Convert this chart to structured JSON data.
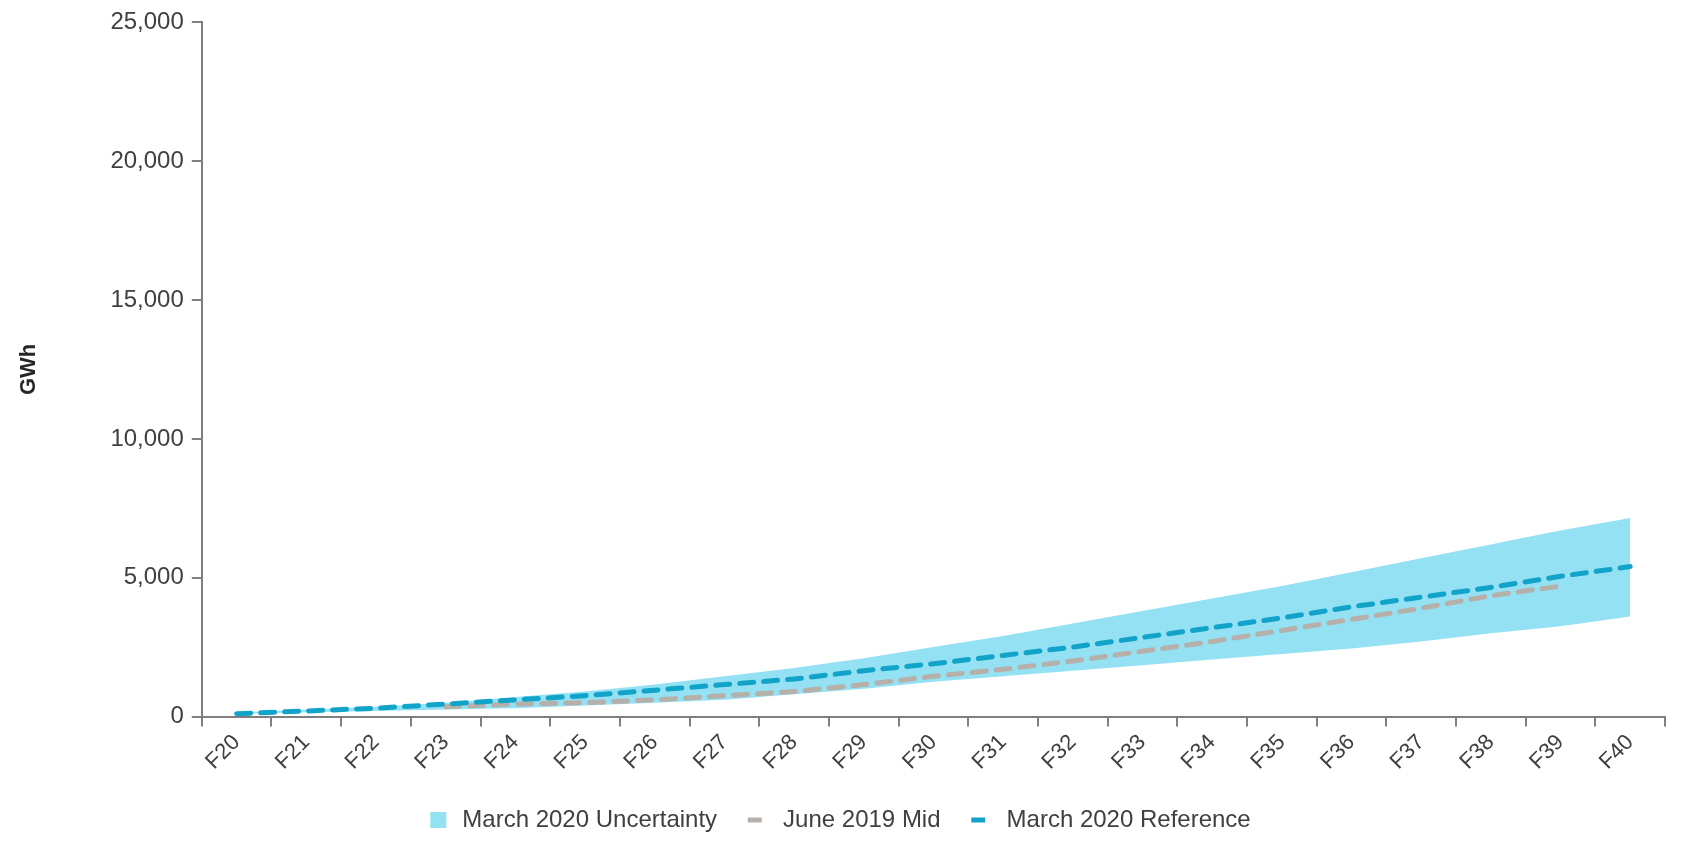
{
  "chart_data": {
    "type": "line",
    "ylabel": "GWh",
    "categories": [
      "F20",
      "F21",
      "F22",
      "F23",
      "F24",
      "F25",
      "F26",
      "F27",
      "F28",
      "F29",
      "F30",
      "F31",
      "F32",
      "F33",
      "F34",
      "F35",
      "F36",
      "F37",
      "F38",
      "F39",
      "F40"
    ],
    "series": [
      {
        "name": "March 2020 Uncertainty",
        "type": "area",
        "color": "#94e1f4",
        "values": [
          null,
          null,
          null,
          null,
          null,
          null,
          null,
          null,
          null,
          null,
          null,
          null,
          null,
          null,
          null,
          null,
          null,
          null,
          null,
          null,
          null
        ],
        "lower": [
          100,
          150,
          200,
          250,
          300,
          400,
          500,
          600,
          800,
          1000,
          1250,
          1450,
          1650,
          1850,
          2050,
          2250,
          2450,
          2700,
          3000,
          3250,
          3600
        ],
        "upper": [
          150,
          250,
          350,
          500,
          700,
          900,
          1150,
          1450,
          1750,
          2100,
          2500,
          2900,
          3350,
          3800,
          4250,
          4700,
          5200,
          5700,
          6200,
          6700,
          7150
        ]
      },
      {
        "name": "June 2019 Mid",
        "type": "line",
        "color": "#b6b0aa",
        "line_style": "dashed",
        "values": [
          null,
          null,
          null,
          350,
          450,
          500,
          600,
          750,
          900,
          1150,
          1450,
          1700,
          2000,
          2350,
          2700,
          3100,
          3500,
          3900,
          4350,
          4700,
          null
        ]
      },
      {
        "name": "March 2020 Reference",
        "type": "line",
        "color": "#12a3c8",
        "line_style": "dashed",
        "values": [
          100,
          200,
          300,
          450,
          600,
          750,
          950,
          1150,
          1350,
          1650,
          1900,
          2200,
          2500,
          2850,
          3200,
          3550,
          3950,
          4300,
          4650,
          5050,
          5400
        ]
      }
    ],
    "ylim": [
      0,
      25000
    ],
    "yticks": [
      {
        "value": 0,
        "label": "0"
      },
      {
        "value": 5000,
        "label": "5,000"
      },
      {
        "value": 10000,
        "label": "10,000"
      },
      {
        "value": 15000,
        "label": "15,000"
      },
      {
        "value": 20000,
        "label": "20,000"
      },
      {
        "value": 25000,
        "label": "25,000"
      }
    ],
    "grid": false,
    "legend": "bottom",
    "marker": "none"
  }
}
